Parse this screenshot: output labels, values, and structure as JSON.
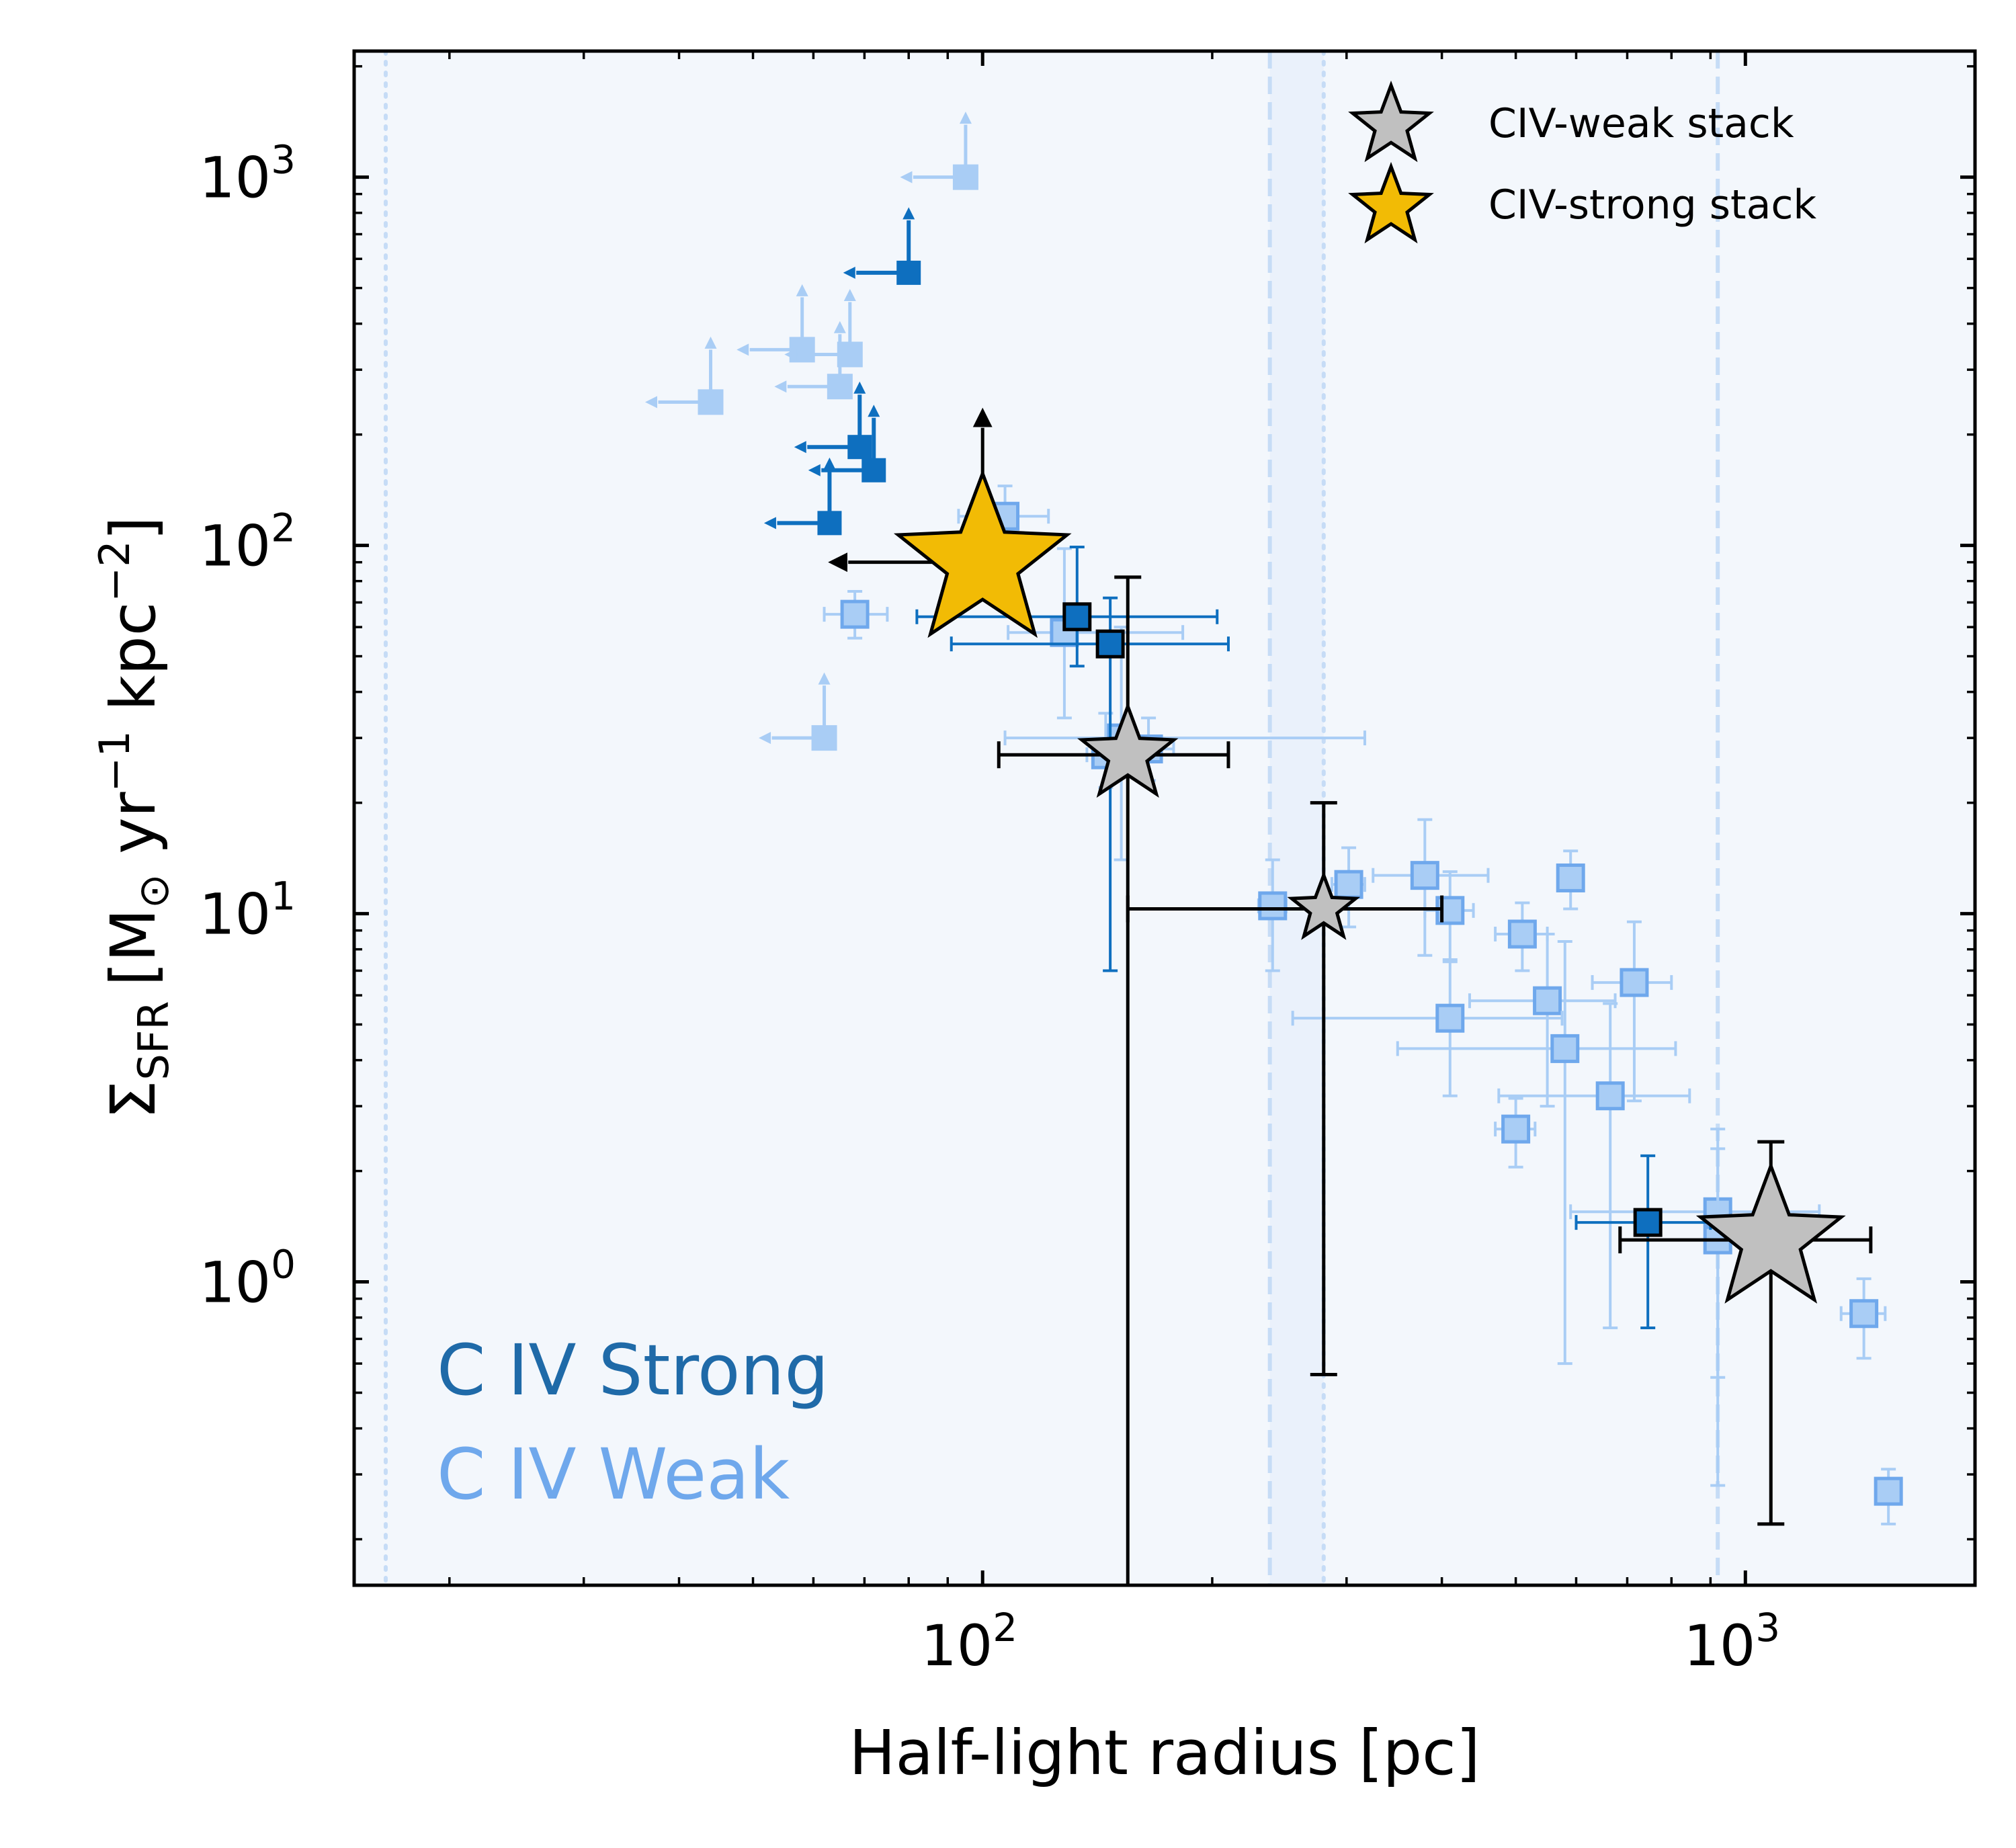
{
  "chart_data": {
    "type": "scatter",
    "xlabel": "Half-light radius [pc]",
    "ylabel": "Σ_SFR [M⊙ yr⁻¹ kpc⁻²]",
    "ylabel_parts": {
      "sigma": "Σ",
      "sub": "SFR",
      "unit": "[M",
      "odot": "⊙",
      "yr": " yr",
      "yr_exp": "−1",
      "kpc": " kpc",
      "kpc_exp": "−2",
      "close": "]"
    },
    "xscale": "log",
    "yscale": "log",
    "xlim": [
      15,
      2000
    ],
    "ylim": [
      0.15,
      2200
    ],
    "x_ticks": [
      {
        "value": 100,
        "base": "10",
        "exp": "2"
      },
      {
        "value": 1000,
        "base": "10",
        "exp": "3"
      }
    ],
    "y_ticks": [
      {
        "value": 1,
        "base": "10",
        "exp": "0"
      },
      {
        "value": 10,
        "base": "10",
        "exp": "1"
      },
      {
        "value": 100,
        "base": "10",
        "exp": "2"
      },
      {
        "value": 1000,
        "base": "10",
        "exp": "3"
      }
    ],
    "grid": false,
    "legend_position": "top-right",
    "colors": {
      "strong": "#0e6fbf",
      "weak": "#a9cdf5",
      "weak_edge": "#6fa8ec",
      "weak_star": "#c0c0c0",
      "strong_star": "#f2bb05",
      "band": "#f3f7fc",
      "band_edge": "#c6dcf6"
    },
    "annotations": [
      "C IV Strong",
      "C IV Weak"
    ],
    "legend": [
      {
        "label": "CIV-weak stack",
        "color": "#c0c0c0"
      },
      {
        "label": "CIV-strong stack",
        "color": "#f2bb05"
      }
    ],
    "reference_lines": [
      {
        "x": 16.5,
        "style": "dotted"
      },
      {
        "x": 238,
        "style": "dashed"
      },
      {
        "x": 280,
        "style": "dotted"
      },
      {
        "x": 920,
        "style": "dashed"
      }
    ],
    "series": [
      {
        "name": "C IV Strong",
        "color": "#0e6fbf",
        "upper_limits": [
          {
            "x": 80,
            "y": 550
          },
          {
            "x": 69,
            "y": 185
          },
          {
            "x": 72,
            "y": 160
          },
          {
            "x": 63,
            "y": 115
          }
        ],
        "points": [
          {
            "x": 133,
            "y": 64,
            "xerr": [
              51,
              70
            ],
            "yerr": [
              17,
              35
            ]
          },
          {
            "x": 147,
            "y": 54,
            "xerr": [
              56,
              63
            ],
            "yerr": [
              47,
              18
            ]
          },
          {
            "x": 745,
            "y": 1.45,
            "xerr": [
              145,
              155
            ],
            "yerr": [
              0.7,
              0.75
            ]
          }
        ]
      },
      {
        "name": "C IV Weak",
        "color": "#a9cdf5",
        "upper_limits": [
          {
            "x": 95,
            "y": 1000
          },
          {
            "x": 58,
            "y": 340
          },
          {
            "x": 67,
            "y": 330
          },
          {
            "x": 44,
            "y": 245
          },
          {
            "x": 65,
            "y": 270
          },
          {
            "x": 62,
            "y": 30
          }
        ],
        "points": [
          {
            "x": 68,
            "y": 65,
            "xerr": [
              6,
              7
            ],
            "yerr": [
              9,
              10
            ]
          },
          {
            "x": 107,
            "y": 120,
            "xerr": [
              14,
              15
            ],
            "yerr": [
              20,
              25
            ]
          },
          {
            "x": 128,
            "y": 58,
            "xerr": [
              20,
              55
            ],
            "yerr": [
              24,
              40
            ]
          },
          {
            "x": 152,
            "y": 30,
            "xerr": [
              45,
              165
            ],
            "yerr": [
              16,
              30
            ]
          },
          {
            "x": 145,
            "y": 27,
            "xerr": [
              8,
              9
            ],
            "yerr": [
              5,
              8
            ]
          },
          {
            "x": 165,
            "y": 28,
            "xerr": [
              12,
              13
            ],
            "yerr": [
              5,
              6
            ]
          },
          {
            "x": 240,
            "y": 10.5,
            "xerr": [
              10,
              10
            ],
            "yerr": [
              3.5,
              3.5
            ]
          },
          {
            "x": 302,
            "y": 12,
            "xerr": [
              15,
              15
            ],
            "yerr": [
              2.8,
              3.1
            ]
          },
          {
            "x": 380,
            "y": 12.7,
            "xerr": [
              55,
              80
            ],
            "yerr": [
              5,
              5.3
            ]
          },
          {
            "x": 410,
            "y": 10.2,
            "xerr": [
              30,
              30
            ],
            "yerr": [
              2.7,
              2.8
            ]
          },
          {
            "x": 510,
            "y": 8.8,
            "xerr": [
              40,
              40
            ],
            "yerr": [
              1.8,
              1.9
            ]
          },
          {
            "x": 590,
            "y": 12.5,
            "xerr": [
              20,
              20
            ],
            "yerr": [
              2.2,
              2.3
            ]
          },
          {
            "x": 550,
            "y": 5.8,
            "xerr": [
              115,
              125
            ],
            "yerr": [
              2.8,
              3
            ]
          },
          {
            "x": 410,
            "y": 5.2,
            "xerr": [
              155,
              165
            ],
            "yerr": [
              2,
              2.2
            ]
          },
          {
            "x": 580,
            "y": 4.3,
            "xerr": [
              230,
              230
            ],
            "yerr": [
              3.7,
              4.1
            ]
          },
          {
            "x": 715,
            "y": 6.5,
            "xerr": [
              85,
              85
            ],
            "yerr": [
              3.4,
              3.0
            ]
          },
          {
            "x": 665,
            "y": 3.2,
            "xerr": [
              190,
              180
            ],
            "yerr": [
              2.45,
              2.5
            ]
          },
          {
            "x": 500,
            "y": 2.6,
            "xerr": [
              30,
              30
            ],
            "yerr": [
              0.55,
              0.55
            ]
          },
          {
            "x": 920,
            "y": 1.55,
            "xerr": [
              330,
              330
            ],
            "yerr": [
              1.0,
              1.05
            ]
          },
          {
            "x": 920,
            "y": 1.3,
            "xerr": [
              35,
              35
            ],
            "yerr": [
              1.02,
              1.0
            ]
          },
          {
            "x": 1430,
            "y": 0.82,
            "xerr": [
              95,
              95
            ],
            "yerr": [
              0.2,
              0.2
            ]
          },
          {
            "x": 1540,
            "y": 0.27,
            "xerr": [
              55,
              55
            ],
            "yerr": [
              0.05,
              0.04
            ]
          }
        ]
      },
      {
        "name": "CIV-weak stack",
        "color": "#c0c0c0",
        "points": [
          {
            "x": 155,
            "y": 27,
            "xerr": [
              50,
              55
            ],
            "yerr": [
              26.9,
              55
            ],
            "size": "medium"
          },
          {
            "x": 280,
            "y": 10.3,
            "xerr": [
              125,
              120
            ],
            "yerr": [
              9.74,
              9.7
            ],
            "size": "small"
          },
          {
            "x": 1080,
            "y": 1.3,
            "xerr": [
              395,
              380
            ],
            "yerr": [
              1.08,
              1.1
            ],
            "size": "large"
          }
        ]
      },
      {
        "name": "CIV-strong stack",
        "color": "#f2bb05",
        "points": [
          {
            "x": 100,
            "y": 90,
            "x_upper_limit": true,
            "y_lower_limit": true,
            "size": "large"
          }
        ]
      }
    ]
  }
}
